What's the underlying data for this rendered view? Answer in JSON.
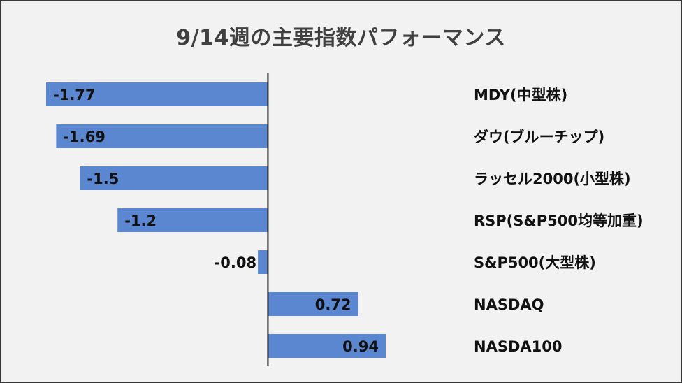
{
  "chart_data": {
    "type": "bar",
    "orientation": "horizontal",
    "title": "9/14週の主要指数パフォーマンス",
    "categories": [
      "MDY(中型株)",
      "ダウ(ブルーチップ)",
      "ラッセル2000(小型株)",
      "RSP(S&P500均等加重)",
      "S&P500(大型株)",
      "NASDAQ",
      "NASDA100"
    ],
    "values": [
      -1.77,
      -1.69,
      -1.5,
      -1.2,
      -0.08,
      0.72,
      0.94
    ],
    "data_labels": [
      "-1.77",
      "-1.69",
      "-1.5",
      "-1.2",
      "-0.08",
      "0.72",
      "0.94"
    ],
    "xlim": [
      -1.77,
      0.94
    ],
    "bar_color": "#5b86d0",
    "background_color": "#f2f2f2",
    "axis_color": "#1a1a1a",
    "grid": false,
    "legend": "none",
    "category_label_position": "right"
  }
}
